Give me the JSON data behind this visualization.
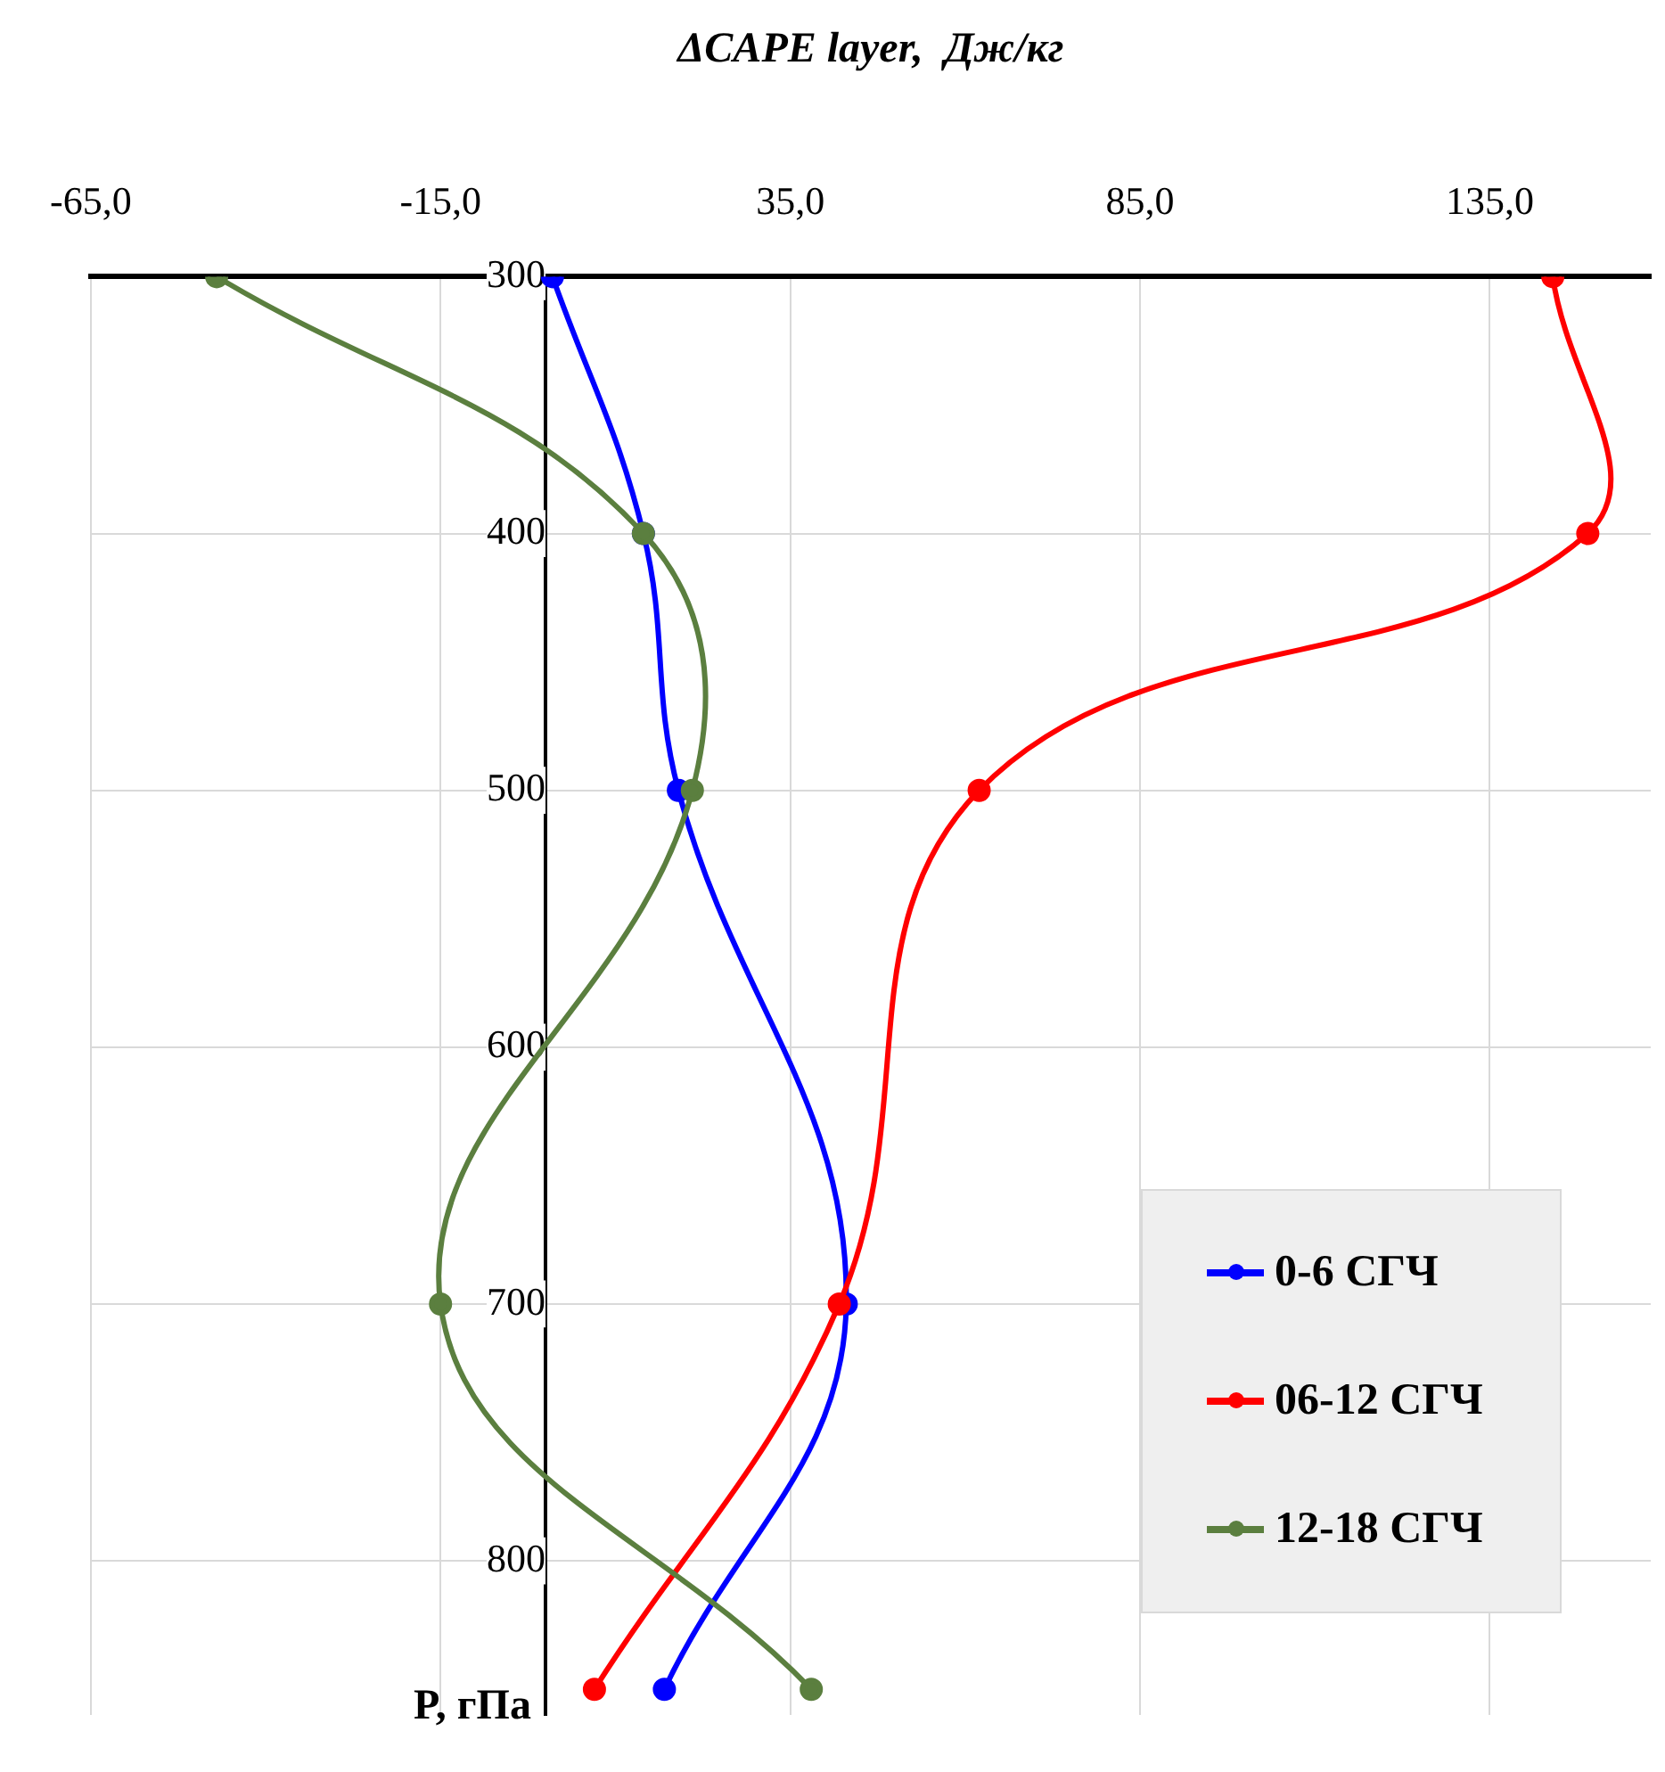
{
  "chart_data": {
    "type": "line",
    "xlabel": "ΔCAPE layer,  Дж/кг",
    "ylabel": "P, гПа",
    "xlim": [
      -65,
      158
    ],
    "xticks": [
      {
        "value": -65,
        "label": "-65,0"
      },
      {
        "value": -15,
        "label": "-15,0"
      },
      {
        "value": 35,
        "label": "35,0"
      },
      {
        "value": 85,
        "label": "85,0"
      },
      {
        "value": 135,
        "label": "135,0"
      }
    ],
    "ylim": [
      860,
      300
    ],
    "yticks": [
      300,
      400,
      500,
      600,
      700,
      800
    ],
    "grid": true,
    "legend": "bottom right",
    "marker": "circle",
    "line_style": "solid",
    "series": [
      {
        "name": "0-6 СГЧ",
        "color": "#0000ff",
        "x": [
          1,
          14,
          19,
          43,
          17
        ],
        "values": [
          300,
          400,
          500,
          700,
          850
        ]
      },
      {
        "name": "06-12 СГЧ",
        "color": "#ff0000",
        "x": [
          144,
          149,
          62,
          42,
          7
        ],
        "values": [
          300,
          400,
          500,
          700,
          850
        ]
      },
      {
        "name": "12-18 СГЧ",
        "color": "#5b7f3f",
        "x": [
          -47,
          14,
          21,
          -15,
          38
        ],
        "values": [
          300,
          400,
          500,
          700,
          850
        ]
      }
    ]
  }
}
